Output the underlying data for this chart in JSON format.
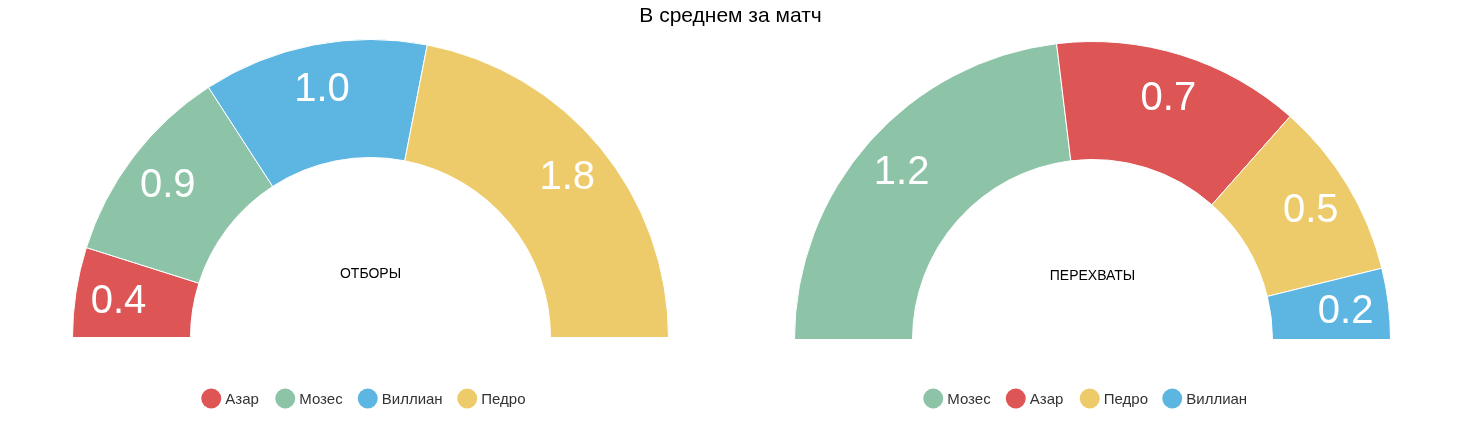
{
  "chart_data": [
    {
      "type": "donut",
      "title": "В среднем за матч",
      "categories": [
        "Азар",
        "Мозес",
        "Виллиан",
        "Педро"
      ],
      "values": [
        0.4,
        0.9,
        1.0,
        1.8
      ],
      "colors": [
        "#dd5555",
        "#8dc3a7",
        "#5db6e2",
        "#edcb6a"
      ],
      "value_labels": [
        "0.4",
        "0.9",
        "1.0",
        "1.8"
      ],
      "legend": "bottom",
      "annotations": [
        "ОТБОРЫ"
      ]
    },
    {
      "type": "donut",
      "categories": [
        "Мозес",
        "Азар",
        "Педро",
        "Виллиан"
      ],
      "values": [
        1.2,
        0.7,
        0.5,
        0.2
      ],
      "colors": [
        "#8dc3a7",
        "#dd5555",
        "#edcb6a",
        "#5db6e2"
      ],
      "value_labels": [
        "1.2",
        "0.7",
        "0.5",
        "0.2"
      ],
      "legend": "bottom",
      "annotations": [
        "ПЕРЕХВАТЫ"
      ]
    }
  ]
}
